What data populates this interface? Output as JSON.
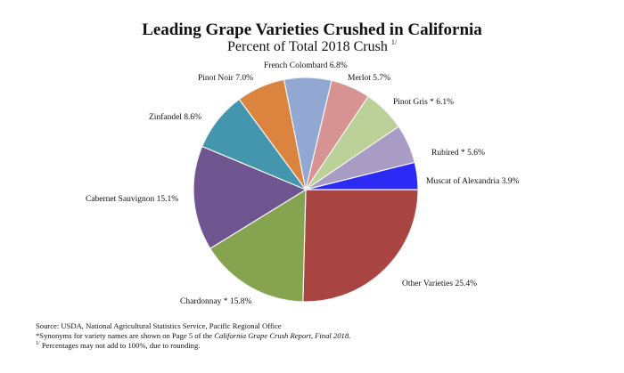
{
  "chart_data": {
    "type": "pie",
    "title": "Leading Grape Varieties Crushed in California",
    "subtitle": "Percent of Total 2018 Crush",
    "subtitle_footnote_mark": "1/",
    "start_angle": "3 o'clock, clockwise",
    "slices": [
      {
        "label": "Other Varieties",
        "value": 25.4,
        "color": "#a84442"
      },
      {
        "label": "Chardonnay *",
        "value": 15.8,
        "color": "#86a34f"
      },
      {
        "label": "Cabernet Sauvignon",
        "value": 15.1,
        "color": "#6f5590"
      },
      {
        "label": "Zinfandel",
        "value": 8.6,
        "color": "#4396ae"
      },
      {
        "label": "Pinot Noir",
        "value": 7.0,
        "color": "#db8440"
      },
      {
        "label": "French Colombard",
        "value": 6.8,
        "color": "#92a8d2"
      },
      {
        "label": "Merlot",
        "value": 5.7,
        "color": "#d79392"
      },
      {
        "label": "Pinot Gris *",
        "value": 6.1,
        "color": "#bcd198"
      },
      {
        "label": "Rubired *",
        "value": 5.6,
        "color": "#a89cc4"
      },
      {
        "label": "Muscat of Alexandria",
        "value": 3.9,
        "color": "#2b2bf5"
      }
    ]
  },
  "labels": {
    "other": "Other Varieties 25.4%",
    "chardonnay": "Chardonnay *  15.8%",
    "cabernet": "Cabernet Sauvignon  15.1%",
    "zinfandel": "Zinfandel  8.6%",
    "pinot_noir": "Pinot Noir  7.0%",
    "french_colombard": "French Colombard  6.8%",
    "merlot": "Merlot  5.7%",
    "pinot_gris": "Pinot Gris *  6.1%",
    "rubired": "Rubired *  5.6%",
    "muscat": "Muscat of Alexandria  3.9%"
  },
  "footnotes": {
    "source": "Source: USDA, National Agricultural Statistics Service, Pacific  Regional  Office",
    "synonyms_prefix": "*Synonyms for variety names are shown on Page 5 of the ",
    "synonyms_italic": "California Grape Crush Report, Final 2018.",
    "rounding_mark": "1/",
    "rounding": " Percentages may not add to 100%, due to rounding."
  }
}
